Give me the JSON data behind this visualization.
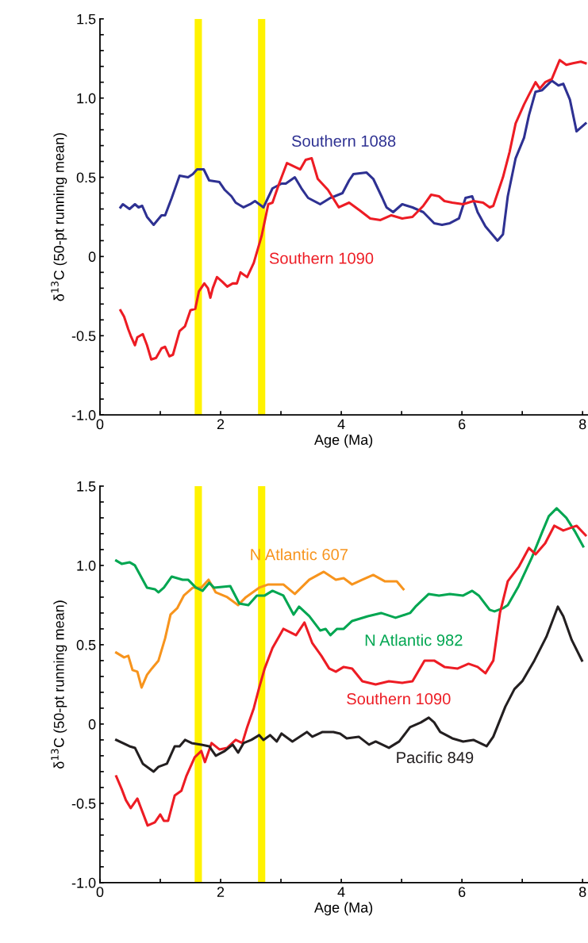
{
  "chart_data": [
    {
      "type": "line",
      "xlabel": "Age (Ma)",
      "ylabel": "δ$^{13}$C (50-pt running mean)",
      "xlim": [
        0,
        8.08
      ],
      "ylim": [
        -1.0,
        1.5
      ],
      "xticks": [
        0,
        {
          "value": 1,
          "label": null
        },
        2,
        {
          "value": 3,
          "label": null
        },
        4,
        {
          "value": 5,
          "label": null
        },
        6,
        {
          "value": 7,
          "label": null
        },
        8
      ],
      "yticks": [
        {
          "value": -1.0,
          "label": "-1.0"
        },
        {
          "value": -0.9,
          "label": null
        },
        {
          "value": -0.8,
          "label": null
        },
        {
          "value": -0.7,
          "label": null
        },
        {
          "value": -0.6,
          "label": null
        },
        {
          "value": -0.5,
          "label": "-0.5"
        },
        {
          "value": -0.4,
          "label": null
        },
        {
          "value": -0.3,
          "label": null
        },
        {
          "value": -0.2,
          "label": null
        },
        {
          "value": -0.1,
          "label": null
        },
        0,
        {
          "value": 0.1,
          "label": null
        },
        {
          "value": 0.2,
          "label": null
        },
        {
          "value": 0.3,
          "label": null
        },
        {
          "value": 0.4,
          "label": null
        },
        {
          "value": 0.5,
          "label": "0.5"
        },
        {
          "value": 0.6,
          "label": null
        },
        {
          "value": 0.7,
          "label": null
        },
        {
          "value": 0.8,
          "label": null
        },
        {
          "value": 0.9,
          "label": null
        },
        {
          "value": 1.0,
          "label": "1.0"
        },
        {
          "value": 1.1,
          "label": null
        },
        {
          "value": 1.2,
          "label": null
        },
        {
          "value": 1.3,
          "label": null
        },
        {
          "value": 1.4,
          "label": null
        },
        1.5
      ],
      "bands": [
        {
          "axis": "x",
          "from": 1.57,
          "to": 1.69,
          "color": "#fff200"
        },
        {
          "axis": "x",
          "from": 2.62,
          "to": 2.74,
          "color": "#fff200"
        }
      ],
      "series": [
        {
          "name": "Southern 1088",
          "color": "#2e3192",
          "x": [
            0.34,
            0.38,
            0.49,
            0.58,
            0.64,
            0.7,
            0.78,
            0.89,
            1.02,
            1.08,
            1.19,
            1.32,
            1.46,
            1.54,
            1.61,
            1.72,
            1.81,
            1.98,
            2.07,
            2.18,
            2.25,
            2.38,
            2.49,
            2.57,
            2.71,
            2.86,
            3.01,
            3.08,
            3.23,
            3.34,
            3.45,
            3.65,
            3.82,
            3.89,
            4.02,
            4.13,
            4.2,
            4.42,
            4.53,
            4.68,
            4.75,
            4.86,
            5.01,
            5.18,
            5.36,
            5.54,
            5.67,
            5.8,
            5.95,
            6.06,
            6.17,
            6.26,
            6.39,
            6.59,
            6.68,
            6.76,
            6.89,
            7.03,
            7.11,
            7.22,
            7.33,
            7.49,
            7.6,
            7.68,
            7.79,
            7.9,
            8.05
          ],
          "values": [
            0.31,
            0.33,
            0.3,
            0.33,
            0.31,
            0.32,
            0.25,
            0.2,
            0.26,
            0.26,
            0.37,
            0.51,
            0.5,
            0.52,
            0.55,
            0.55,
            0.48,
            0.47,
            0.42,
            0.38,
            0.34,
            0.31,
            0.33,
            0.35,
            0.31,
            0.43,
            0.46,
            0.46,
            0.5,
            0.43,
            0.37,
            0.33,
            0.37,
            0.38,
            0.4,
            0.48,
            0.52,
            0.53,
            0.49,
            0.37,
            0.31,
            0.28,
            0.33,
            0.31,
            0.28,
            0.21,
            0.2,
            0.21,
            0.24,
            0.37,
            0.38,
            0.28,
            0.19,
            0.1,
            0.14,
            0.38,
            0.62,
            0.75,
            0.89,
            1.04,
            1.05,
            1.11,
            1.08,
            1.09,
            0.99,
            0.79,
            0.84
          ]
        },
        {
          "name": "Southern 1090",
          "color": "#ed1c24",
          "x": [
            0.34,
            0.4,
            0.47,
            0.51,
            0.58,
            0.62,
            0.71,
            0.78,
            0.85,
            0.93,
            1.02,
            1.08,
            1.15,
            1.21,
            1.32,
            1.41,
            1.5,
            1.58,
            1.64,
            1.73,
            1.79,
            1.83,
            1.87,
            1.94,
            2.03,
            2.11,
            2.2,
            2.27,
            2.33,
            2.44,
            2.55,
            2.68,
            2.79,
            2.86,
            2.97,
            3.1,
            3.32,
            3.41,
            3.51,
            3.61,
            3.78,
            3.96,
            4.13,
            4.31,
            4.48,
            4.65,
            4.83,
            5.01,
            5.18,
            5.36,
            5.49,
            5.62,
            5.71,
            5.84,
            6.02,
            6.19,
            6.35,
            6.46,
            6.52,
            6.68,
            6.79,
            6.89,
            7.03,
            7.11,
            7.22,
            7.29,
            7.38,
            7.49,
            7.62,
            7.73,
            7.84,
            7.97,
            8.05
          ],
          "values": [
            -0.34,
            -0.38,
            -0.46,
            -0.5,
            -0.56,
            -0.51,
            -0.49,
            -0.56,
            -0.65,
            -0.64,
            -0.58,
            -0.57,
            -0.63,
            -0.62,
            -0.47,
            -0.44,
            -0.34,
            -0.33,
            -0.22,
            -0.17,
            -0.2,
            -0.26,
            -0.2,
            -0.13,
            -0.16,
            -0.19,
            -0.17,
            -0.17,
            -0.1,
            -0.13,
            -0.04,
            0.13,
            0.33,
            0.34,
            0.46,
            0.59,
            0.55,
            0.61,
            0.62,
            0.49,
            0.42,
            0.31,
            0.34,
            0.29,
            0.24,
            0.23,
            0.26,
            0.24,
            0.25,
            0.32,
            0.39,
            0.38,
            0.35,
            0.34,
            0.33,
            0.35,
            0.34,
            0.31,
            0.32,
            0.5,
            0.66,
            0.84,
            0.96,
            1.02,
            1.1,
            1.06,
            1.1,
            1.12,
            1.24,
            1.21,
            1.22,
            1.23,
            1.22
          ]
        }
      ]
    },
    {
      "type": "line",
      "xlabel": "Age (Ma)",
      "ylabel": "δ$^{13}$C (50-pt running mean)",
      "xlim": [
        0,
        8.08
      ],
      "ylim": [
        -1.0,
        1.5
      ],
      "xticks": [
        0,
        {
          "value": 1,
          "label": null
        },
        2,
        {
          "value": 3,
          "label": null
        },
        4,
        {
          "value": 5,
          "label": null
        },
        6,
        {
          "value": 7,
          "label": null
        },
        8
      ],
      "yticks": [
        {
          "value": -1.0,
          "label": "-1.0"
        },
        {
          "value": -0.9,
          "label": null
        },
        {
          "value": -0.8,
          "label": null
        },
        {
          "value": -0.7,
          "label": null
        },
        {
          "value": -0.6,
          "label": null
        },
        {
          "value": -0.5,
          "label": "-0.5"
        },
        {
          "value": -0.4,
          "label": null
        },
        {
          "value": -0.3,
          "label": null
        },
        {
          "value": -0.2,
          "label": null
        },
        {
          "value": -0.1,
          "label": null
        },
        0,
        {
          "value": 0.1,
          "label": null
        },
        {
          "value": 0.2,
          "label": null
        },
        {
          "value": 0.3,
          "label": null
        },
        {
          "value": 0.4,
          "label": null
        },
        {
          "value": 0.5,
          "label": "0.5"
        },
        {
          "value": 0.6,
          "label": null
        },
        {
          "value": 0.7,
          "label": null
        },
        {
          "value": 0.8,
          "label": null
        },
        {
          "value": 0.9,
          "label": null
        },
        {
          "value": 1.0,
          "label": "1.0"
        },
        {
          "value": 1.1,
          "label": null
        },
        {
          "value": 1.2,
          "label": null
        },
        {
          "value": 1.3,
          "label": null
        },
        {
          "value": 1.4,
          "label": null
        },
        1.5
      ],
      "bands": [
        {
          "axis": "x",
          "from": 1.57,
          "to": 1.69,
          "color": "#fff200"
        },
        {
          "axis": "x",
          "from": 2.62,
          "to": 2.74,
          "color": "#fff200"
        }
      ],
      "series": [
        {
          "name": "N Atlantic 607",
          "color": "#f7941d",
          "x": [
            0.27,
            0.4,
            0.47,
            0.54,
            0.62,
            0.69,
            0.78,
            0.86,
            0.97,
            1.08,
            1.17,
            1.28,
            1.39,
            1.54,
            1.68,
            1.8,
            1.92,
            2.11,
            2.29,
            2.42,
            2.64,
            2.79,
            3.04,
            3.23,
            3.47,
            3.71,
            3.91,
            4.04,
            4.18,
            4.35,
            4.53,
            4.72,
            4.92,
            5.03
          ],
          "values": [
            0.45,
            0.42,
            0.43,
            0.34,
            0.33,
            0.23,
            0.31,
            0.35,
            0.4,
            0.54,
            0.69,
            0.73,
            0.81,
            0.86,
            0.86,
            0.91,
            0.83,
            0.8,
            0.75,
            0.8,
            0.86,
            0.88,
            0.88,
            0.82,
            0.91,
            0.96,
            0.91,
            0.92,
            0.88,
            0.91,
            0.94,
            0.9,
            0.9,
            0.85
          ]
        },
        {
          "name": "N Atlantic 982",
          "color": "#00a651",
          "x": [
            0.27,
            0.36,
            0.49,
            0.58,
            0.78,
            0.91,
            0.97,
            1.06,
            1.19,
            1.37,
            1.46,
            1.59,
            1.7,
            1.81,
            1.89,
            2.16,
            2.31,
            2.46,
            2.6,
            2.73,
            2.86,
            3.04,
            3.21,
            3.3,
            3.47,
            3.65,
            3.74,
            3.82,
            3.93,
            4.04,
            4.18,
            4.44,
            4.66,
            4.9,
            5.14,
            5.23,
            5.45,
            5.62,
            5.8,
            6.02,
            6.17,
            6.28,
            6.46,
            6.54,
            6.68,
            6.76,
            6.94,
            7.16,
            7.33,
            7.44,
            7.57,
            7.73,
            7.88,
            8.01
          ],
          "values": [
            1.03,
            1.01,
            1.02,
            1.0,
            0.86,
            0.85,
            0.83,
            0.86,
            0.93,
            0.91,
            0.91,
            0.86,
            0.84,
            0.89,
            0.86,
            0.87,
            0.76,
            0.75,
            0.81,
            0.81,
            0.84,
            0.81,
            0.69,
            0.74,
            0.68,
            0.59,
            0.6,
            0.56,
            0.6,
            0.6,
            0.65,
            0.68,
            0.7,
            0.67,
            0.7,
            0.74,
            0.82,
            0.81,
            0.82,
            0.81,
            0.84,
            0.81,
            0.72,
            0.71,
            0.73,
            0.75,
            0.87,
            1.05,
            1.21,
            1.31,
            1.36,
            1.3,
            1.21,
            1.12
          ]
        },
        {
          "name": "Southern 1090",
          "color": "#ed1c24",
          "x": [
            0.27,
            0.36,
            0.43,
            0.51,
            0.62,
            0.71,
            0.79,
            0.91,
            1.0,
            1.06,
            1.13,
            1.24,
            1.35,
            1.43,
            1.57,
            1.68,
            1.74,
            1.85,
            1.98,
            2.11,
            2.25,
            2.36,
            2.44,
            2.55,
            2.64,
            2.73,
            2.86,
            3.04,
            3.25,
            3.39,
            3.52,
            3.67,
            3.8,
            3.91,
            4.04,
            4.18,
            4.35,
            4.57,
            4.79,
            5.01,
            5.18,
            5.38,
            5.54,
            5.71,
            5.93,
            6.11,
            6.26,
            6.39,
            6.52,
            6.63,
            6.76,
            6.94,
            7.11,
            7.22,
            7.38,
            7.53,
            7.68,
            7.9,
            8.05
          ],
          "values": [
            -0.33,
            -0.41,
            -0.48,
            -0.53,
            -0.47,
            -0.56,
            -0.64,
            -0.62,
            -0.57,
            -0.61,
            -0.61,
            -0.45,
            -0.42,
            -0.33,
            -0.21,
            -0.17,
            -0.24,
            -0.12,
            -0.16,
            -0.15,
            -0.1,
            -0.12,
            -0.02,
            0.1,
            0.23,
            0.35,
            0.48,
            0.6,
            0.56,
            0.64,
            0.51,
            0.43,
            0.35,
            0.33,
            0.36,
            0.35,
            0.27,
            0.25,
            0.27,
            0.26,
            0.27,
            0.4,
            0.4,
            0.36,
            0.35,
            0.38,
            0.36,
            0.32,
            0.4,
            0.7,
            0.9,
            0.99,
            1.11,
            1.07,
            1.14,
            1.25,
            1.22,
            1.25,
            1.19
          ]
        },
        {
          "name": "Pacific 849",
          "color": "#231f20",
          "x": [
            0.27,
            0.49,
            0.58,
            0.71,
            0.89,
            0.97,
            1.11,
            1.24,
            1.32,
            1.41,
            1.52,
            1.68,
            1.81,
            1.92,
            2.07,
            2.2,
            2.29,
            2.38,
            2.51,
            2.64,
            2.71,
            2.82,
            2.93,
            3.01,
            3.19,
            3.43,
            3.52,
            3.69,
            3.87,
            3.98,
            4.09,
            4.29,
            4.46,
            4.57,
            4.79,
            4.96,
            5.14,
            5.32,
            5.45,
            5.54,
            5.64,
            5.84,
            6.02,
            6.19,
            6.41,
            6.52,
            6.72,
            6.87,
            7.0,
            7.2,
            7.4,
            7.59,
            7.68,
            7.82,
            7.99
          ],
          "values": [
            -0.1,
            -0.14,
            -0.15,
            -0.25,
            -0.3,
            -0.27,
            -0.25,
            -0.14,
            -0.14,
            -0.1,
            -0.12,
            -0.13,
            -0.14,
            -0.2,
            -0.17,
            -0.13,
            -0.18,
            -0.12,
            -0.1,
            -0.07,
            -0.1,
            -0.07,
            -0.11,
            -0.06,
            -0.11,
            -0.05,
            -0.08,
            -0.05,
            -0.05,
            -0.06,
            -0.09,
            -0.08,
            -0.13,
            -0.11,
            -0.15,
            -0.11,
            -0.02,
            0.01,
            0.04,
            0.01,
            -0.05,
            -0.09,
            -0.11,
            -0.1,
            -0.14,
            -0.08,
            0.11,
            0.22,
            0.27,
            0.4,
            0.55,
            0.74,
            0.68,
            0.53,
            0.4
          ]
        }
      ]
    }
  ]
}
